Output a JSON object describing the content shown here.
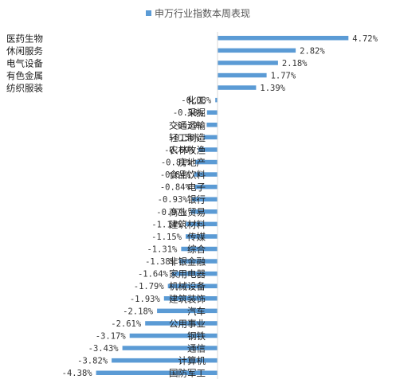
{
  "chart_data": {
    "type": "bar",
    "orientation": "horizontal",
    "legend": "top-center",
    "series": [
      {
        "name": "申万行业指数本周表现",
        "color": "#5b9bd5",
        "values": [
          4.72,
          2.82,
          2.18,
          1.77,
          1.39,
          -0.08,
          -0.38,
          -0.39,
          -0.5,
          -0.69,
          -0.81,
          -0.84,
          -0.84,
          -0.93,
          -0.97,
          -1.14,
          -1.15,
          -1.31,
          -1.38,
          -1.64,
          -1.79,
          -1.93,
          -2.18,
          -2.61,
          -3.17,
          -3.43,
          -3.82,
          -4.38
        ],
        "labels": [
          "4.72%",
          "2.82%",
          "2.18%",
          "1.77%",
          "1.39%",
          "-0.08%",
          "-0.38%",
          "-0.39%",
          "-0.50%",
          "-0.69%",
          "-0.81%",
          "-0.84%",
          "-0.84%",
          "-0.93%",
          "-0.97%",
          "-1.14%",
          "-1.15%",
          "-1.31%",
          "-1.38%",
          "-1.64%",
          "-1.79%",
          "-1.93%",
          "-2.18%",
          "-2.61%",
          "-3.17%",
          "-3.43%",
          "-3.82%",
          "-4.38%"
        ]
      }
    ],
    "categories": [
      "医药生物",
      "休闲服务",
      "电气设备",
      "有色金属",
      "纺织服装",
      "化工",
      "采掘",
      "交通运输",
      "轻工制造",
      "农林牧渔",
      "房地产",
      "食品饮料",
      "电子",
      "银行",
      "商业贸易",
      "建筑材料",
      "传媒",
      "综合",
      "非银金融",
      "家用电器",
      "机械设备",
      "建筑装饰",
      "汽车",
      "公用事业",
      "钢铁",
      "通信",
      "计算机",
      "国防军工"
    ],
    "xlim": [
      -4.9,
      5.3
    ],
    "grid": false
  }
}
